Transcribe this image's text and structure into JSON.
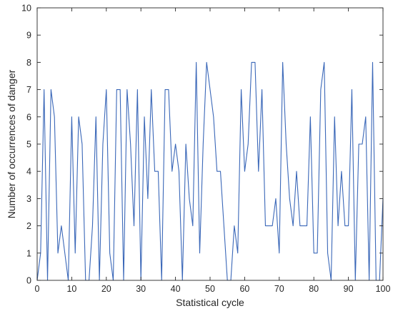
{
  "chart_data": {
    "type": "line",
    "title": "",
    "xlabel": "Statistical cycle",
    "ylabel": "Number of occurrences of danger",
    "xlim": [
      0,
      100
    ],
    "ylim": [
      0,
      10
    ],
    "xticks": [
      0,
      10,
      20,
      30,
      40,
      50,
      60,
      70,
      80,
      90,
      100
    ],
    "yticks": [
      0,
      1,
      2,
      3,
      4,
      5,
      6,
      7,
      8,
      9,
      10
    ],
    "grid": false,
    "series": [
      {
        "color": "#3a67b8",
        "x": [
          0,
          1,
          2,
          3,
          4,
          5,
          6,
          7,
          8,
          9,
          10,
          11,
          12,
          13,
          14,
          15,
          16,
          17,
          18,
          19,
          20,
          21,
          22,
          23,
          24,
          25,
          26,
          27,
          28,
          29,
          30,
          31,
          32,
          33,
          34,
          35,
          36,
          37,
          38,
          39,
          40,
          41,
          42,
          43,
          44,
          45,
          46,
          47,
          48,
          49,
          50,
          51,
          52,
          53,
          54,
          55,
          56,
          57,
          58,
          59,
          60,
          61,
          62,
          63,
          64,
          65,
          66,
          67,
          68,
          69,
          70,
          71,
          72,
          73,
          74,
          75,
          76,
          77,
          78,
          79,
          80,
          81,
          82,
          83,
          84,
          85,
          86,
          87,
          88,
          89,
          90,
          91,
          92,
          93,
          94,
          95,
          96,
          97,
          98,
          99,
          100
        ],
        "y": [
          0,
          1,
          7,
          0,
          7,
          6,
          1,
          2,
          1,
          0,
          6,
          1,
          6,
          5,
          0,
          0,
          2,
          6,
          0,
          5,
          7,
          1,
          0,
          7,
          7,
          0,
          7,
          5,
          2,
          7,
          0,
          6,
          3,
          7,
          4,
          4,
          0,
          7,
          7,
          4,
          5,
          4,
          0,
          5,
          3,
          2,
          8,
          1,
          5,
          8,
          7,
          6,
          4,
          4,
          2,
          0,
          0,
          2,
          1,
          7,
          4,
          5,
          8,
          8,
          4,
          7,
          2,
          2,
          2,
          3,
          1,
          8,
          5,
          3,
          2,
          4,
          2,
          2,
          2,
          6,
          1,
          1,
          7,
          8,
          1,
          0,
          6,
          2,
          4,
          2,
          2,
          7,
          0,
          5,
          5,
          6,
          0,
          8,
          0,
          0,
          3
        ]
      }
    ]
  }
}
